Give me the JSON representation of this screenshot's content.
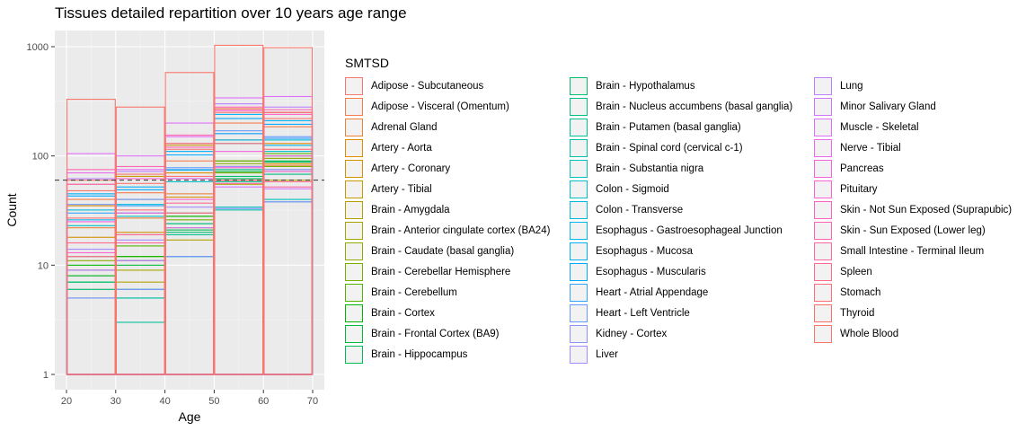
{
  "chart_data": {
    "type": "bar",
    "title": "Tissues detailed repartition over 10 years age range",
    "xlabel": "Age",
    "ylabel": "Count",
    "x_ticks": [
      "20",
      "30",
      "40",
      "50",
      "60",
      "70"
    ],
    "y_ticks": [
      "1",
      "10",
      "100",
      "1000"
    ],
    "y_scale": "log10",
    "xlim": [
      20,
      70
    ],
    "ylim": [
      1,
      1000
    ],
    "reference_line": 60,
    "bins": [
      [
        20,
        30
      ],
      [
        30,
        40
      ],
      [
        40,
        50
      ],
      [
        50,
        60
      ],
      [
        60,
        70
      ]
    ],
    "grid": true,
    "legend_position": "right",
    "legend_title": "SMTSD",
    "series": [
      {
        "name": "Adipose - Subcutaneous",
        "color": "#F8766D",
        "values": [
          48,
          56,
          115,
          250,
          220
        ]
      },
      {
        "name": "Adipose - Visceral (Omentum)",
        "color": "#F47D4D",
        "values": [
          40,
          46,
          90,
          200,
          185
        ]
      },
      {
        "name": "Adrenal Gland",
        "color": "#EC8239",
        "values": [
          22,
          27,
          45,
          80,
          82
        ]
      },
      {
        "name": "Artery - Aorta",
        "color": "#E08B00",
        "values": [
          35,
          40,
          70,
          140,
          130
        ]
      },
      {
        "name": "Artery - Coronary",
        "color": "#D39200",
        "values": [
          18,
          20,
          42,
          90,
          85
        ]
      },
      {
        "name": "Artery - Tibial",
        "color": "#C49A00",
        "values": [
          55,
          65,
          125,
          270,
          250
        ]
      },
      {
        "name": "Brain - Amygdala",
        "color": "#B3A000",
        "values": [
          6,
          7,
          17,
          55,
          60
        ]
      },
      {
        "name": "Brain - Anterior cingulate cortex (BA24)",
        "color": "#A3A500",
        "values": [
          8,
          9,
          22,
          60,
          68
        ]
      },
      {
        "name": "Brain - Caudate (basal ganglia)",
        "color": "#8FAA00",
        "values": [
          11,
          12,
          28,
          85,
          95
        ]
      },
      {
        "name": "Brain - Cerebellar Hemisphere",
        "color": "#75AF00",
        "values": [
          9,
          11,
          26,
          70,
          80
        ]
      },
      {
        "name": "Brain - Cerebellum",
        "color": "#53B400",
        "values": [
          12,
          15,
          30,
          90,
          105
        ]
      },
      {
        "name": "Brain - Cortex",
        "color": "#00B700",
        "values": [
          10,
          12,
          28,
          80,
          100
        ]
      },
      {
        "name": "Brain - Frontal Cortex (BA9)",
        "color": "#00BA38",
        "values": [
          8,
          10,
          24,
          72,
          90
        ]
      },
      {
        "name": "Brain - Hippocampus",
        "color": "#00BC55",
        "values": [
          7,
          5,
          21,
          62,
          72
        ]
      },
      {
        "name": "Brain - Hypothalamus",
        "color": "#00BE6C",
        "values": [
          7,
          6,
          20,
          65,
          75
        ]
      },
      {
        "name": "Brain - Nucleus accumbens (basal ganglia)",
        "color": "#00BF80",
        "values": [
          9,
          11,
          24,
          75,
          88
        ]
      },
      {
        "name": "Brain - Putamen (basal ganglia)",
        "color": "#00C094",
        "values": [
          6,
          3,
          19,
          58,
          68
        ]
      },
      {
        "name": "Brain - Spinal cord (cervical c-1)",
        "color": "#00C0A7",
        "values": [
          5,
          5,
          12,
          32,
          38
        ]
      },
      {
        "name": "Brain - Substantia nigra",
        "color": "#00C0B8",
        "values": [
          5,
          6,
          12,
          34,
          40
        ]
      },
      {
        "name": "Colon - Sigmoid",
        "color": "#00BECA",
        "values": [
          23,
          28,
          58,
          130,
          110
        ]
      },
      {
        "name": "Colon - Transverse",
        "color": "#00BBDA",
        "values": [
          32,
          36,
          74,
          160,
          140
        ]
      },
      {
        "name": "Esophagus - Gastroesophageal Junction",
        "color": "#00B6EB",
        "values": [
          26,
          30,
          62,
          140,
          125
        ]
      },
      {
        "name": "Esophagus - Mucosa",
        "color": "#00B0F6",
        "values": [
          45,
          52,
          110,
          240,
          210
        ]
      },
      {
        "name": "Esophagus - Muscularis",
        "color": "#00A9FF",
        "values": [
          43,
          49,
          102,
          220,
          195
        ]
      },
      {
        "name": "Heart - Atrial Appendage",
        "color": "#35A2FF",
        "values": [
          30,
          35,
          75,
          160,
          145
        ]
      },
      {
        "name": "Heart - Left Ventricle",
        "color": "#679AFF",
        "values": [
          36,
          40,
          78,
          170,
          150
        ]
      },
      {
        "name": "Kidney - Cortex",
        "color": "#8B93FF",
        "values": [
          5,
          6,
          12,
          33,
          38
        ]
      },
      {
        "name": "Liver",
        "color": "#A68AFF",
        "values": [
          14,
          17,
          34,
          80,
          75
        ]
      },
      {
        "name": "Lung",
        "color": "#BC81FF",
        "values": [
          62,
          72,
          130,
          300,
          280
        ]
      },
      {
        "name": "Minor Salivary Gland",
        "color": "#CF78FF",
        "values": [
          9,
          11,
          22,
          52,
          50
        ]
      },
      {
        "name": "Muscle - Skeletal",
        "color": "#DF70F9",
        "values": [
          105,
          100,
          200,
          340,
          350
        ]
      },
      {
        "name": "Nerve - Tibial",
        "color": "#EB69F0",
        "values": [
          70,
          75,
          150,
          260,
          250
        ]
      },
      {
        "name": "Pancreas",
        "color": "#F564E3",
        "values": [
          25,
          30,
          62,
          110,
          100
        ]
      },
      {
        "name": "Pituitary",
        "color": "#FC61D5",
        "values": [
          13,
          19,
          40,
          78,
          72
        ]
      },
      {
        "name": "Skin - Not Sun Exposed (Suprapubic)",
        "color": "#FF62C5",
        "values": [
          55,
          62,
          120,
          260,
          240
        ]
      },
      {
        "name": "Skin - Sun Exposed (Lower leg)",
        "color": "#FF64B3",
        "values": [
          75,
          80,
          155,
          280,
          265
        ]
      },
      {
        "name": "Small Intestine - Terminal Ileum",
        "color": "#FF67A0",
        "values": [
          12,
          16,
          30,
          56,
          52
        ]
      },
      {
        "name": "Spleen",
        "color": "#FF6A8D",
        "values": [
          16,
          19,
          37,
          60,
          58
        ]
      },
      {
        "name": "Stomach",
        "color": "#FE6D78",
        "values": [
          27,
          32,
          65,
          130,
          115
        ]
      },
      {
        "name": "Thyroid",
        "color": "#FB7064",
        "values": [
          60,
          68,
          130,
          270,
          250
        ]
      },
      {
        "name": "Whole Blood",
        "color": "#F8766D",
        "values": [
          330,
          280,
          580,
          1030,
          980
        ]
      }
    ]
  }
}
